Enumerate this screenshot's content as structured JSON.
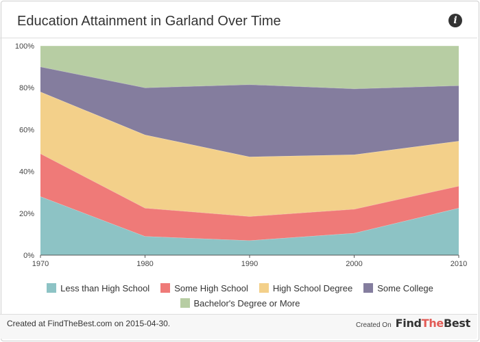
{
  "header": {
    "title": "Education Attainment in Garland Over Time",
    "info_icon": "info-icon"
  },
  "chart_data": {
    "type": "area",
    "stacked": true,
    "title": "Education Attainment in Garland Over Time",
    "x": [
      1970,
      1980,
      1990,
      2000,
      2010
    ],
    "x_tick_labels": [
      "1970",
      "1980",
      "1990",
      "2000",
      "2010"
    ],
    "y_tick_labels": [
      "0%",
      "20%",
      "40%",
      "60%",
      "80%",
      "100%"
    ],
    "ylim": [
      0,
      100
    ],
    "grid": false,
    "legend_position": "bottom",
    "series": [
      {
        "name": "Less than High School",
        "color": "#8dc3c5",
        "values": [
          28,
          9,
          7,
          10.5,
          22.5
        ]
      },
      {
        "name": "Some High School",
        "color": "#ef7a78",
        "values": [
          20.5,
          13.5,
          11.5,
          11.5,
          10.5
        ]
      },
      {
        "name": "High School Degree",
        "color": "#f3d08a",
        "values": [
          29.5,
          35,
          28.5,
          26,
          21.5
        ]
      },
      {
        "name": "Some College",
        "color": "#847d9e",
        "values": [
          12,
          22.5,
          34.5,
          31.5,
          26.5
        ]
      },
      {
        "name": "Bachelor's Degree or More",
        "color": "#b7cda3",
        "values": [
          10,
          20,
          18.5,
          20.5,
          19
        ]
      }
    ]
  },
  "footer": {
    "created_text": "Created at FindTheBest.com on 2015-04-30.",
    "created_on_label": "Created On",
    "brand_part1": "Find",
    "brand_part2": "The",
    "brand_part3": "Best"
  }
}
